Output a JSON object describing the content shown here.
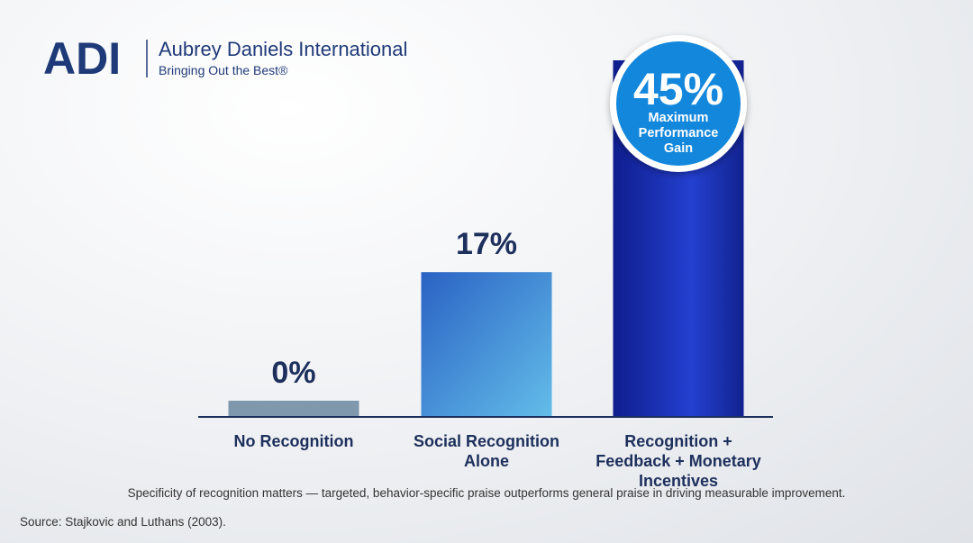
{
  "brand": {
    "mark": "ADI",
    "name": "Aubrey Daniels International",
    "tagline": "Bringing Out the Best®"
  },
  "chart_data": {
    "type": "bar",
    "categories": [
      "No Recognition",
      "Social Recognition Alone",
      "Recognition + Feedback + Monetary Incentives"
    ],
    "values": [
      0,
      17,
      45
    ],
    "value_labels": [
      "0%",
      "17%",
      "45%"
    ],
    "colors": [
      "#7f98ae",
      "#3d8ad8",
      "#1c2fb0"
    ],
    "annotation": "Maximum Performance Gain",
    "caption": "Specificity of recognition matters — targeted, behavior-specific praise outperforms general praise in driving measurable improvement.",
    "source": "Source: Stajkovic and Luthans (2003)."
  }
}
